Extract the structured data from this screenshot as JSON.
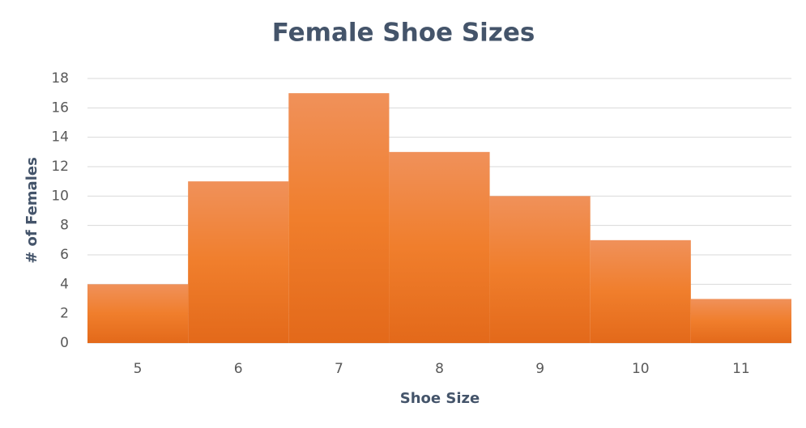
{
  "chart_data": {
    "type": "bar",
    "title": "Female Shoe Sizes",
    "x_label": "Shoe Size",
    "y_label": "# of Females",
    "categories": [
      "5",
      "6",
      "7",
      "8",
      "9",
      "10",
      "11"
    ],
    "values": [
      4,
      11,
      17,
      13,
      10,
      7,
      3
    ],
    "color": "#f07e2c",
    "ylim": [
      0,
      18
    ],
    "yticks": [
      0,
      2,
      4,
      6,
      8,
      10,
      12,
      14,
      16,
      18
    ],
    "grid": true
  }
}
